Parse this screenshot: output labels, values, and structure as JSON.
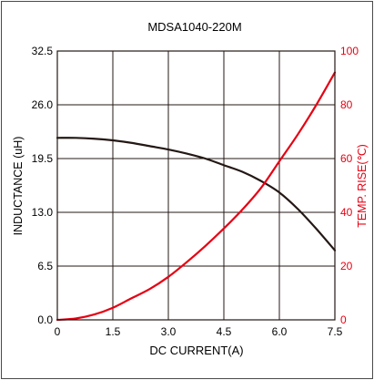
{
  "chart_data": {
    "type": "line",
    "title": "MDSA1040-220M",
    "xlabel": "DC CURRENT(A)",
    "ylabel": "INDUCTANCE (uH)",
    "y2label": "TEMP. RISE(℃)",
    "xlim": [
      0,
      7.5
    ],
    "ylim": [
      0,
      32.5
    ],
    "y2lim": [
      0,
      100
    ],
    "x_ticks": [
      "0",
      "1.5",
      "3.0",
      "4.5",
      "6.0",
      "7.5"
    ],
    "y_ticks": [
      "0.0",
      "6.5",
      "13.0",
      "19.5",
      "26.0",
      "32.5"
    ],
    "y2_ticks": [
      "0",
      "20",
      "40",
      "60",
      "80",
      "100"
    ],
    "grid": true,
    "series": [
      {
        "axis": "left",
        "color": "#231815",
        "x": [
          0,
          0.5,
          1,
          1.5,
          2,
          2.5,
          3,
          3.5,
          4,
          4.5,
          5,
          5.5,
          6,
          6.5,
          7,
          7.5
        ],
        "values": [
          22.0,
          22.0,
          21.9,
          21.7,
          21.4,
          21.0,
          20.6,
          20.1,
          19.5,
          18.7,
          17.9,
          16.8,
          15.4,
          13.4,
          11.0,
          8.4
        ]
      },
      {
        "axis": "right",
        "color": "#e60012",
        "x": [
          0,
          0.5,
          1,
          1.5,
          2,
          2.5,
          3,
          3.5,
          4,
          4.5,
          5,
          5.5,
          6,
          6.5,
          7,
          7.5
        ],
        "values": [
          0,
          0.5,
          2,
          4.5,
          8,
          11.5,
          16,
          21.5,
          27.5,
          34,
          41,
          49,
          59,
          69,
          80,
          92
        ]
      }
    ]
  }
}
